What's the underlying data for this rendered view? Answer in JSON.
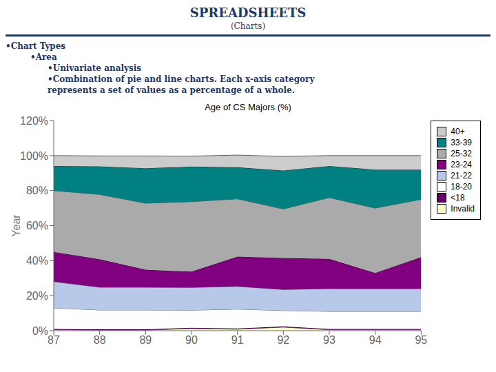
{
  "chart_data": {
    "type": "area",
    "stacked": true,
    "title": "Age of CS Majors (%)",
    "ylabel": "Year",
    "annotations": [
      "SPREADSHEETS",
      "(Charts)",
      "•Chart Types",
      "•Area",
      "•Univariate analysis",
      "•Combination of pie and line charts. Each x-axis category",
      "represents a set of values as a percentage of a whole."
    ],
    "x": [
      87,
      88,
      89,
      90,
      91,
      92,
      93,
      94,
      95
    ],
    "xlim": [
      87,
      95
    ],
    "xticks": [
      87,
      88,
      89,
      90,
      91,
      92,
      93,
      94,
      95
    ],
    "ylim": [
      0,
      120
    ],
    "yticks": [
      {
        "value": 0,
        "label": "0%"
      },
      {
        "value": 20,
        "label": "20%"
      },
      {
        "value": 40,
        "label": "40%"
      },
      {
        "value": 60,
        "label": "60%"
      },
      {
        "value": 80,
        "label": "80%"
      },
      {
        "value": 100,
        "label": "100%"
      },
      {
        "value": 120,
        "label": "120%"
      }
    ],
    "grid": false,
    "legend": "right",
    "series": [
      {
        "name": "Invalid",
        "color": "#ffffcc",
        "values": [
          0.5,
          0.3,
          0.3,
          1.2,
          0.8,
          2.0,
          0.5,
          0.5,
          0.5
        ]
      },
      {
        "name": "<18",
        "color": "#660066",
        "values": [
          0.5,
          0.5,
          0.5,
          0.5,
          0.5,
          0.5,
          0.5,
          0.5,
          0.5
        ]
      },
      {
        "name": "18-20",
        "color": "#ffffff",
        "values": [
          12,
          11,
          11,
          10,
          11,
          9,
          10,
          10,
          10
        ]
      },
      {
        "name": "21-22",
        "color": "#b8c8e8",
        "values": [
          15,
          13,
          13,
          13,
          13,
          12,
          13,
          13,
          13
        ]
      },
      {
        "name": "23-24",
        "color": "#800080",
        "values": [
          17,
          16,
          10,
          9,
          17,
          18,
          17,
          9,
          18
        ]
      },
      {
        "name": "25-32",
        "color": "#aaaaaa",
        "values": [
          35,
          37,
          38,
          40,
          33,
          28,
          35,
          37,
          33
        ]
      },
      {
        "name": "33-39",
        "color": "#008080",
        "values": [
          14,
          16,
          20,
          20,
          18,
          22,
          18,
          22,
          17
        ]
      },
      {
        "name": "40+",
        "color": "#cccccc",
        "values": [
          6,
          6,
          7,
          6,
          7,
          8,
          6,
          8,
          8
        ]
      }
    ]
  }
}
